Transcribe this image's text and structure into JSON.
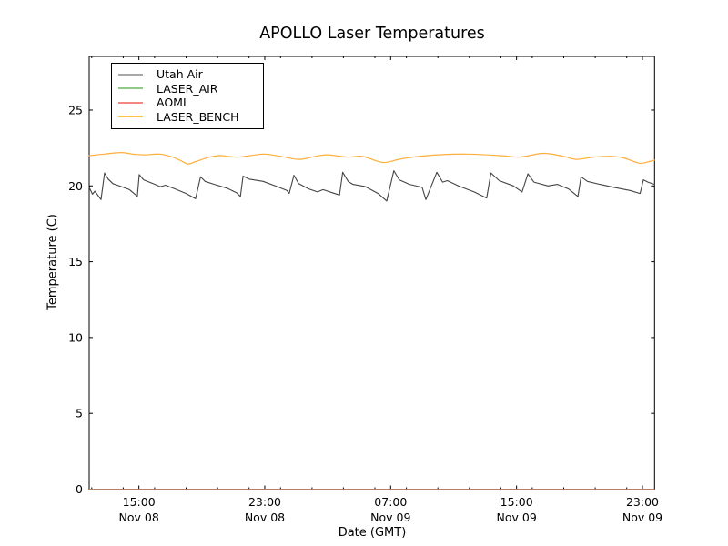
{
  "figure": {
    "background": "#ffffff",
    "frame_color": "#000000"
  },
  "chart_data": {
    "type": "line",
    "title": "APOLLO Laser Temperatures",
    "xlabel": "Date (GMT)",
    "ylabel": "Temperature (C)",
    "grid": false,
    "x_hours_origin": "Nov 08 12:00",
    "xlim": [
      -0.16,
      35.77
    ],
    "ylim": [
      0,
      28.54
    ],
    "y_ticks": [
      0,
      5,
      10,
      15,
      20,
      25
    ],
    "x_major_ticks": [
      {
        "t": 3,
        "time": "15:00",
        "date": "Nov 08"
      },
      {
        "t": 11,
        "time": "23:00",
        "date": "Nov 08"
      },
      {
        "t": 19,
        "time": "07:00",
        "date": "Nov 09"
      },
      {
        "t": 27,
        "time": "15:00",
        "date": "Nov 09"
      },
      {
        "t": 35,
        "time": "23:00",
        "date": "Nov 09"
      }
    ],
    "x_minor_ticks": [
      0,
      2,
      4,
      6,
      8,
      10,
      12,
      14,
      16,
      18,
      20,
      22,
      24,
      26,
      28,
      30,
      32,
      34
    ],
    "legend": {
      "position": "upper left",
      "entries": [
        {
          "label": "Utah Air",
          "color": "#a8a8a8"
        },
        {
          "label": "LASER_AIR",
          "color": "#8fca87"
        },
        {
          "label": "AOML",
          "color": "#f2887f"
        },
        {
          "label": "LASER_BENCH",
          "color": "#ffc04d"
        }
      ]
    },
    "series": [
      {
        "name": "Utah Air",
        "color": "#444444",
        "opacity": 1,
        "smooth": false,
        "points": [
          [
            -0.16,
            19.9
          ],
          [
            0.05,
            19.45
          ],
          [
            0.2,
            19.65
          ],
          [
            0.59,
            19.1
          ],
          [
            0.82,
            20.85
          ],
          [
            1.05,
            20.45
          ],
          [
            1.35,
            20.15
          ],
          [
            1.9,
            19.95
          ],
          [
            2.4,
            19.75
          ],
          [
            2.75,
            19.45
          ],
          [
            2.9,
            19.3
          ],
          [
            3.02,
            20.75
          ],
          [
            3.3,
            20.4
          ],
          [
            3.9,
            20.15
          ],
          [
            4.35,
            19.95
          ],
          [
            4.7,
            20.05
          ],
          [
            5.3,
            19.8
          ],
          [
            6.0,
            19.5
          ],
          [
            6.6,
            19.15
          ],
          [
            6.92,
            20.6
          ],
          [
            7.2,
            20.3
          ],
          [
            7.8,
            20.1
          ],
          [
            8.6,
            19.85
          ],
          [
            9.2,
            19.55
          ],
          [
            9.45,
            19.3
          ],
          [
            9.62,
            20.65
          ],
          [
            10.0,
            20.45
          ],
          [
            10.9,
            20.3
          ],
          [
            11.8,
            19.95
          ],
          [
            12.4,
            19.7
          ],
          [
            12.55,
            19.5
          ],
          [
            12.85,
            20.7
          ],
          [
            13.15,
            20.15
          ],
          [
            13.8,
            19.8
          ],
          [
            14.35,
            19.6
          ],
          [
            14.7,
            19.75
          ],
          [
            15.3,
            19.55
          ],
          [
            15.75,
            19.4
          ],
          [
            15.95,
            20.9
          ],
          [
            16.3,
            20.3
          ],
          [
            16.6,
            20.1
          ],
          [
            17.4,
            19.95
          ],
          [
            18.2,
            19.5
          ],
          [
            18.75,
            19.0
          ],
          [
            19.2,
            21.0
          ],
          [
            19.55,
            20.4
          ],
          [
            20.2,
            20.1
          ],
          [
            21.0,
            19.9
          ],
          [
            21.24,
            19.1
          ],
          [
            21.93,
            20.9
          ],
          [
            22.3,
            20.25
          ],
          [
            22.6,
            20.35
          ],
          [
            23.3,
            20.0
          ],
          [
            24.3,
            19.6
          ],
          [
            25.1,
            19.2
          ],
          [
            25.37,
            20.85
          ],
          [
            25.9,
            20.35
          ],
          [
            26.8,
            20.0
          ],
          [
            27.35,
            19.6
          ],
          [
            27.72,
            20.8
          ],
          [
            28.1,
            20.25
          ],
          [
            29.0,
            20.0
          ],
          [
            29.6,
            20.1
          ],
          [
            30.3,
            19.8
          ],
          [
            30.9,
            19.3
          ],
          [
            31.1,
            20.6
          ],
          [
            31.5,
            20.3
          ],
          [
            32.3,
            20.1
          ],
          [
            33.2,
            19.9
          ],
          [
            34.2,
            19.7
          ],
          [
            34.85,
            19.5
          ],
          [
            35.06,
            20.4
          ],
          [
            35.35,
            20.25
          ],
          [
            35.77,
            20.1
          ]
        ]
      },
      {
        "name": "LASER_AIR",
        "color": "#8fca87",
        "opacity": 0.55,
        "smooth": false,
        "points": [
          [
            -0.16,
            0
          ],
          [
            35.77,
            0
          ]
        ]
      },
      {
        "name": "AOML",
        "color": "#f2887f",
        "opacity": 0.6,
        "smooth": false,
        "points": [
          [
            -0.16,
            0
          ],
          [
            35.77,
            0
          ]
        ]
      },
      {
        "name": "LASER_BENCH",
        "color": "#ffae3c",
        "opacity": 1,
        "smooth": true,
        "points": [
          [
            -0.16,
            22.0
          ],
          [
            0.8,
            22.1
          ],
          [
            1.9,
            22.2
          ],
          [
            2.6,
            22.1
          ],
          [
            3.4,
            22.05
          ],
          [
            4.3,
            22.1
          ],
          [
            5.0,
            21.95
          ],
          [
            5.6,
            21.7
          ],
          [
            6.1,
            21.45
          ],
          [
            6.6,
            21.6
          ],
          [
            7.5,
            21.9
          ],
          [
            8.2,
            22.0
          ],
          [
            9.3,
            21.9
          ],
          [
            10.9,
            22.1
          ],
          [
            12.0,
            21.95
          ],
          [
            13.2,
            21.75
          ],
          [
            14.2,
            21.95
          ],
          [
            15.0,
            22.05
          ],
          [
            16.3,
            21.9
          ],
          [
            17.2,
            21.95
          ],
          [
            18.5,
            21.55
          ],
          [
            19.5,
            21.75
          ],
          [
            20.4,
            21.9
          ],
          [
            22.0,
            22.05
          ],
          [
            23.8,
            22.1
          ],
          [
            26.0,
            22.0
          ],
          [
            27.2,
            21.9
          ],
          [
            28.7,
            22.15
          ],
          [
            30.0,
            21.95
          ],
          [
            30.8,
            21.75
          ],
          [
            31.9,
            21.9
          ],
          [
            33.0,
            21.95
          ],
          [
            33.8,
            21.85
          ],
          [
            34.8,
            21.5
          ],
          [
            35.4,
            21.6
          ],
          [
            35.77,
            21.7
          ]
        ]
      }
    ]
  }
}
